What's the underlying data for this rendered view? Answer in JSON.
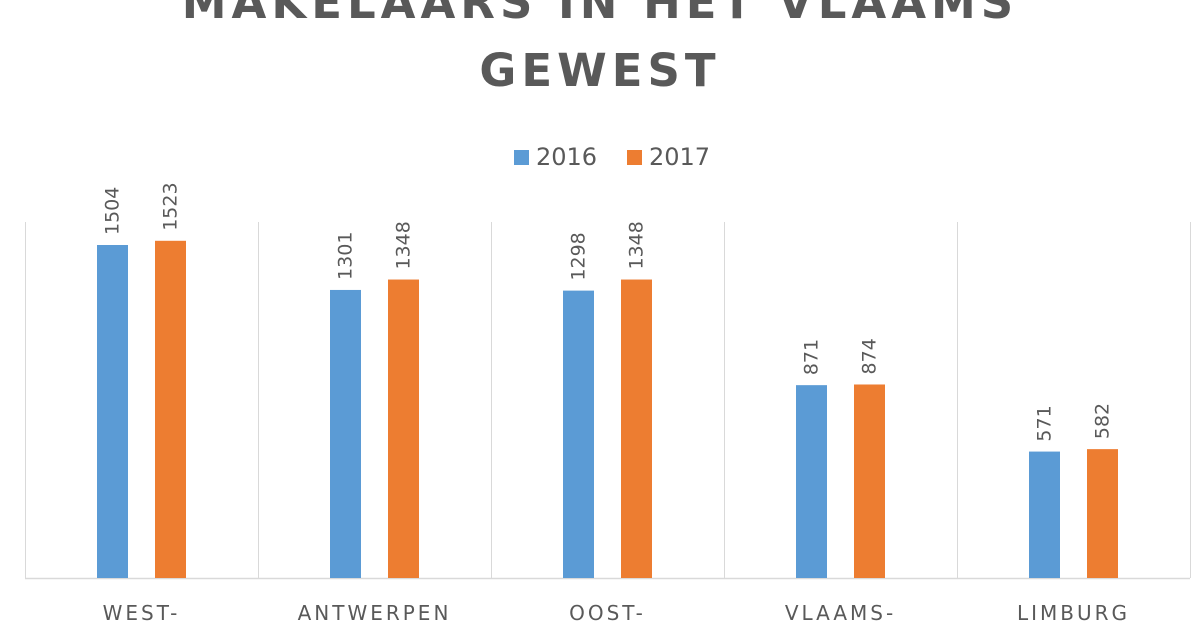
{
  "chart_data": {
    "type": "bar",
    "title_lines": [
      "MAKELAARS IN HET VLAAMS",
      "GEWEST"
    ],
    "categories": [
      "WEST-",
      "ANTWERPEN",
      "OOST-",
      "VLAAMS-",
      "LIMBURG"
    ],
    "series": [
      {
        "name": "2016",
        "color": "#5b9bd5",
        "values": [
          1504,
          1301,
          1298,
          871,
          571
        ]
      },
      {
        "name": "2017",
        "color": "#ed7d31",
        "values": [
          1523,
          1348,
          1348,
          874,
          582
        ]
      }
    ],
    "ylim": [
      0,
      1600
    ],
    "grid": false,
    "legend_position": "top"
  }
}
